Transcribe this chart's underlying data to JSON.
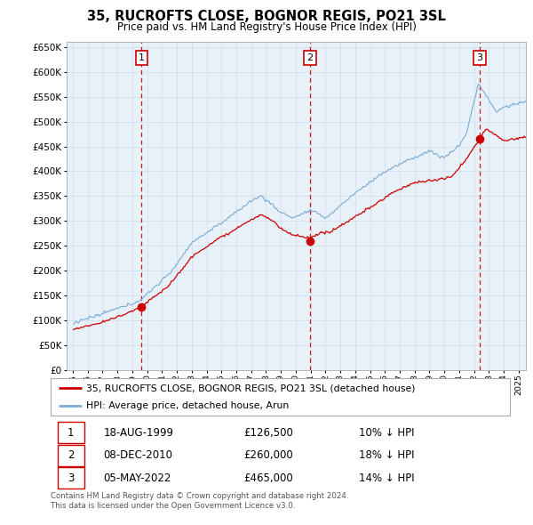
{
  "title": "35, RUCROFTS CLOSE, BOGNOR REGIS, PO21 3SL",
  "subtitle": "Price paid vs. HM Land Registry's House Price Index (HPI)",
  "legend_entries": [
    "35, RUCROFTS CLOSE, BOGNOR REGIS, PO21 3SL (detached house)",
    "HPI: Average price, detached house, Arun"
  ],
  "transactions": [
    {
      "num": 1,
      "date": "18-AUG-1999",
      "price": 126500,
      "price_str": "£126,500",
      "pct": "10%",
      "dir": "↓"
    },
    {
      "num": 2,
      "date": "08-DEC-2010",
      "price": 260000,
      "price_str": "£260,000",
      "pct": "18%",
      "dir": "↓"
    },
    {
      "num": 3,
      "date": "05-MAY-2022",
      "price": 465000,
      "price_str": "£465,000",
      "pct": "14%",
      "dir": "↓"
    }
  ],
  "footer": "Contains HM Land Registry data © Crown copyright and database right 2024.\nThis data is licensed under the Open Government Licence v3.0.",
  "line_color_red": "#cc0000",
  "line_color_blue": "#7aadd4",
  "grid_color": "#ccddee",
  "plot_bg": "#e8f0f8",
  "vline_color": "#cc0000",
  "ylim": [
    0,
    660000
  ],
  "ytick_vals": [
    0,
    50000,
    100000,
    150000,
    200000,
    250000,
    300000,
    350000,
    400000,
    450000,
    500000,
    550000,
    600000,
    650000
  ]
}
